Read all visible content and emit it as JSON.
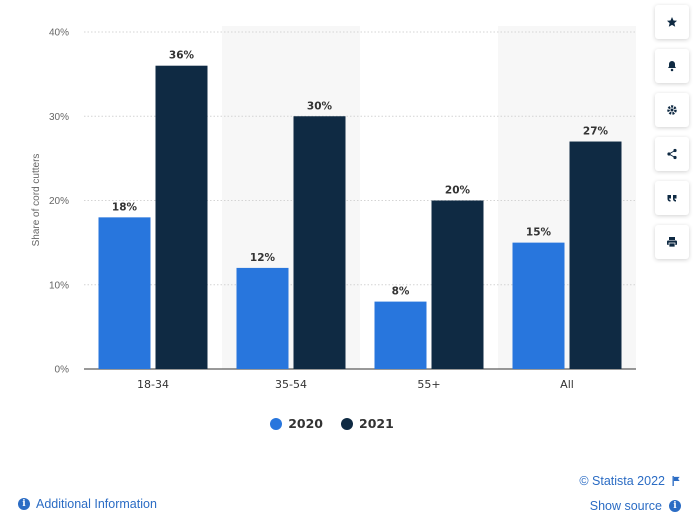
{
  "chart_data": {
    "type": "bar",
    "categories": [
      "18-34",
      "35-54",
      "55+",
      "All"
    ],
    "series": [
      {
        "name": "2020",
        "values": [
          18,
          12,
          8,
          15
        ],
        "labels": [
          "18%",
          "12%",
          "8%",
          "15%"
        ],
        "color": "#2876dd"
      },
      {
        "name": "2021",
        "values": [
          36,
          30,
          20,
          27
        ],
        "labels": [
          "36%",
          "30%",
          "20%",
          "27%"
        ],
        "color": "#0f2a43"
      }
    ],
    "ylabel": "Share of cord cutters",
    "ylim": [
      0,
      40
    ],
    "yticks": [
      0,
      10,
      20,
      30,
      40
    ],
    "ytick_labels": [
      "0%",
      "10%",
      "20%",
      "30%",
      "40%"
    ],
    "grid": true,
    "legend_position": "bottom-center"
  },
  "toolbar": {
    "icons": [
      "star-icon",
      "bell-icon",
      "gear-icon",
      "share-icon",
      "quote-icon",
      "print-icon"
    ],
    "icon_color": "#0f2a43"
  },
  "footer": {
    "additional_info": "Additional Information",
    "copyright": "© Statista 2022",
    "show_source": "Show source",
    "link_color": "#2b6cc4"
  }
}
